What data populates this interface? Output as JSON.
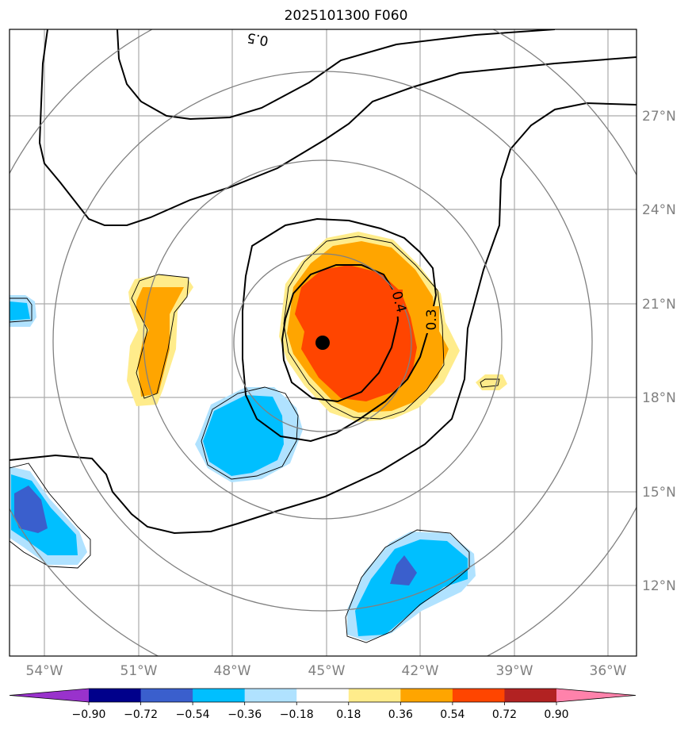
{
  "title": "2025101300 F060",
  "lon_labels": [
    "54°W",
    "51°W",
    "48°W",
    "45°W",
    "42°W",
    "39°W",
    "36°W"
  ],
  "lat_labels": [
    "27°N",
    "24°N",
    "21°N",
    "18°N",
    "15°N",
    "12°N"
  ],
  "contour_labels": [
    "0.4",
    "0.3",
    "0.5"
  ],
  "colorbar": {
    "ticks": [
      "−0.90",
      "−0.72",
      "−0.54",
      "−0.36",
      "−0.18",
      "0.18",
      "0.36",
      "0.54",
      "0.72",
      "0.90"
    ],
    "colors": [
      "#9932cc",
      "#00008b",
      "#3a5fcd",
      "#00bfff",
      "#b0e2ff",
      "#ffffff",
      "#ffec8b",
      "#ffa500",
      "#ff4500",
      "#b22222",
      "#ff82ab"
    ]
  },
  "colors": {
    "orange": "#ffa500",
    "red_orange": "#ff4500",
    "light_yellow": "#ffec8b",
    "deep_sky_blue": "#00bfff",
    "light_sky_blue": "#b0e2ff",
    "royal_blue": "#3a5fcd",
    "grid": "#aaaaaa",
    "range_ring": "#808080"
  }
}
